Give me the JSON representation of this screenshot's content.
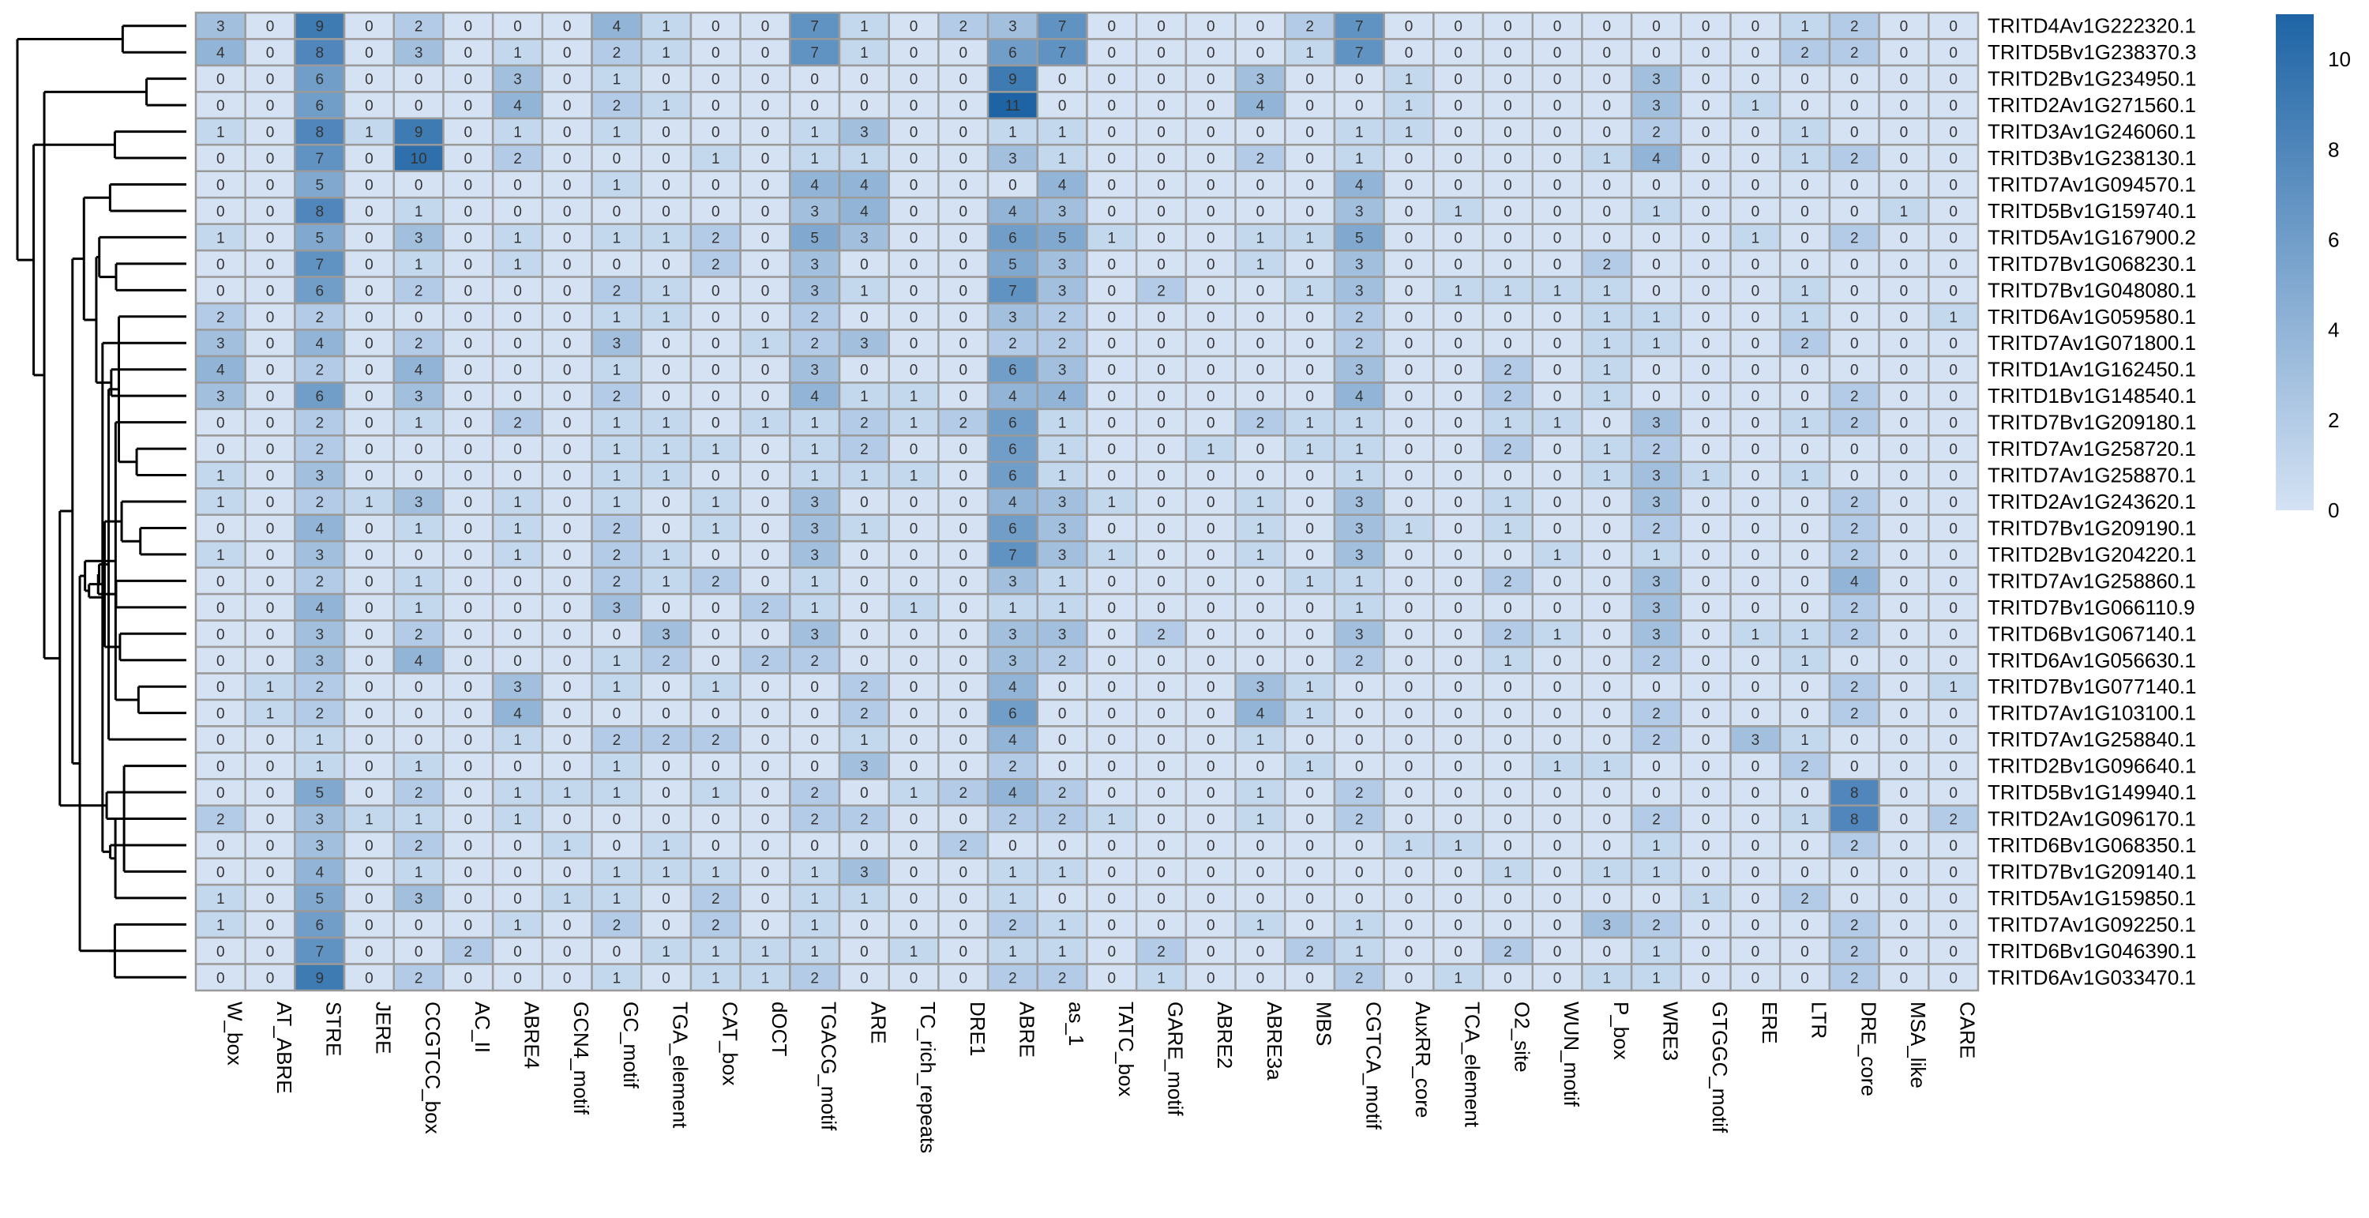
{
  "chart_data": {
    "type": "heatmap",
    "rows": [
      "TRITD4Av1G222320.1",
      "TRITD5Bv1G238370.3",
      "TRITD2Bv1G234950.1",
      "TRITD2Av1G271560.1",
      "TRITD3Av1G246060.1",
      "TRITD3Bv1G238130.1",
      "TRITD7Av1G094570.1",
      "TRITD5Bv1G159740.1",
      "TRITD5Av1G167900.2",
      "TRITD7Bv1G068230.1",
      "TRITD7Bv1G048080.1",
      "TRITD6Av1G059580.1",
      "TRITD7Av1G071800.1",
      "TRITD1Av1G162450.1",
      "TRITD1Bv1G148540.1",
      "TRITD7Bv1G209180.1",
      "TRITD7Av1G258720.1",
      "TRITD7Av1G258870.1",
      "TRITD2Av1G243620.1",
      "TRITD7Bv1G209190.1",
      "TRITD2Bv1G204220.1",
      "TRITD7Av1G258860.1",
      "TRITD7Bv1G066110.9",
      "TRITD6Bv1G067140.1",
      "TRITD6Av1G056630.1",
      "TRITD7Bv1G077140.1",
      "TRITD7Av1G103100.1",
      "TRITD7Av1G258840.1",
      "TRITD2Bv1G096640.1",
      "TRITD5Bv1G149940.1",
      "TRITD2Av1G096170.1",
      "TRITD6Bv1G068350.1",
      "TRITD7Bv1G209140.1",
      "TRITD5Av1G159850.1",
      "TRITD7Av1G092250.1",
      "TRITD6Bv1G046390.1",
      "TRITD6Av1G033470.1"
    ],
    "columns": [
      "W_box",
      "AT_ABRE",
      "STRE",
      "JERE",
      "CCGTCC_box",
      "AC_II",
      "ABRE4",
      "GCN4_motif",
      "GC_motif",
      "TGA_element",
      "CAT_box",
      "dOCT",
      "TGACG_motif",
      "ARE",
      "TC_rich_repeats",
      "DRE1",
      "ABRE",
      "as_1",
      "TATC_box",
      "GARE_motif",
      "ABRE2",
      "ABRE3a",
      "MBS",
      "CGTCA_motif",
      "AuxRR_core",
      "TCA_element",
      "O2_site",
      "WUN_motif",
      "P_box",
      "WRE3",
      "GTGGC_motif",
      "ERE",
      "LTR",
      "DRE_core",
      "MSA_like",
      "CARE"
    ],
    "values": [
      [
        3,
        0,
        9,
        0,
        2,
        0,
        0,
        0,
        4,
        1,
        0,
        0,
        7,
        1,
        0,
        2,
        3,
        7,
        0,
        0,
        0,
        0,
        2,
        7,
        0,
        0,
        0,
        0,
        0,
        0,
        0,
        0,
        1,
        2,
        0,
        0
      ],
      [
        4,
        0,
        8,
        0,
        3,
        0,
        1,
        0,
        2,
        1,
        0,
        0,
        7,
        1,
        0,
        0,
        6,
        7,
        0,
        0,
        0,
        0,
        1,
        7,
        0,
        0,
        0,
        0,
        0,
        0,
        0,
        0,
        2,
        2,
        0,
        0
      ],
      [
        0,
        0,
        6,
        0,
        0,
        0,
        3,
        0,
        1,
        0,
        0,
        0,
        0,
        0,
        0,
        0,
        9,
        0,
        0,
        0,
        0,
        3,
        0,
        0,
        1,
        0,
        0,
        0,
        0,
        3,
        0,
        0,
        0,
        0,
        0,
        0
      ],
      [
        0,
        0,
        6,
        0,
        0,
        0,
        4,
        0,
        2,
        1,
        0,
        0,
        0,
        0,
        0,
        0,
        11,
        0,
        0,
        0,
        0,
        4,
        0,
        0,
        1,
        0,
        0,
        0,
        0,
        3,
        0,
        1,
        0,
        0,
        0,
        0
      ],
      [
        1,
        0,
        8,
        1,
        9,
        0,
        1,
        0,
        1,
        0,
        0,
        0,
        1,
        3,
        0,
        0,
        1,
        1,
        0,
        0,
        0,
        0,
        0,
        1,
        1,
        0,
        0,
        0,
        0,
        2,
        0,
        0,
        1,
        0,
        0,
        0
      ],
      [
        0,
        0,
        7,
        0,
        10,
        0,
        2,
        0,
        0,
        0,
        1,
        0,
        1,
        1,
        0,
        0,
        3,
        1,
        0,
        0,
        0,
        2,
        0,
        1,
        0,
        0,
        0,
        0,
        1,
        4,
        0,
        0,
        1,
        2,
        0,
        0
      ],
      [
        0,
        0,
        5,
        0,
        0,
        0,
        0,
        0,
        1,
        0,
        0,
        0,
        4,
        4,
        0,
        0,
        0,
        4,
        0,
        0,
        0,
        0,
        0,
        4,
        0,
        0,
        0,
        0,
        0,
        0,
        0,
        0,
        0,
        0,
        0,
        0
      ],
      [
        0,
        0,
        8,
        0,
        1,
        0,
        0,
        0,
        0,
        0,
        0,
        0,
        3,
        4,
        0,
        0,
        4,
        3,
        0,
        0,
        0,
        0,
        0,
        3,
        0,
        1,
        0,
        0,
        0,
        1,
        0,
        0,
        0,
        0,
        1,
        0
      ],
      [
        1,
        0,
        5,
        0,
        3,
        0,
        1,
        0,
        1,
        1,
        2,
        0,
        5,
        3,
        0,
        0,
        6,
        5,
        1,
        0,
        0,
        1,
        1,
        5,
        0,
        0,
        0,
        0,
        0,
        0,
        0,
        1,
        0,
        2,
        0,
        0
      ],
      [
        0,
        0,
        7,
        0,
        1,
        0,
        1,
        0,
        0,
        0,
        2,
        0,
        3,
        0,
        0,
        0,
        5,
        3,
        0,
        0,
        0,
        1,
        0,
        3,
        0,
        0,
        0,
        0,
        2,
        0,
        0,
        0,
        0,
        0,
        0,
        0
      ],
      [
        0,
        0,
        6,
        0,
        2,
        0,
        0,
        0,
        2,
        1,
        0,
        0,
        3,
        1,
        0,
        0,
        7,
        3,
        0,
        2,
        0,
        0,
        1,
        3,
        0,
        1,
        1,
        1,
        1,
        0,
        0,
        0,
        1,
        0,
        0,
        0
      ],
      [
        2,
        0,
        2,
        0,
        0,
        0,
        0,
        0,
        1,
        1,
        0,
        0,
        2,
        0,
        0,
        0,
        3,
        2,
        0,
        0,
        0,
        0,
        0,
        2,
        0,
        0,
        0,
        0,
        1,
        1,
        0,
        0,
        1,
        0,
        0,
        1
      ],
      [
        3,
        0,
        4,
        0,
        2,
        0,
        0,
        0,
        3,
        0,
        0,
        1,
        2,
        3,
        0,
        0,
        2,
        2,
        0,
        0,
        0,
        0,
        0,
        2,
        0,
        0,
        0,
        0,
        1,
        1,
        0,
        0,
        2,
        0,
        0,
        0
      ],
      [
        4,
        0,
        2,
        0,
        4,
        0,
        0,
        0,
        1,
        0,
        0,
        0,
        3,
        0,
        0,
        0,
        6,
        3,
        0,
        0,
        0,
        0,
        0,
        3,
        0,
        0,
        2,
        0,
        1,
        0,
        0,
        0,
        0,
        0,
        0,
        0
      ],
      [
        3,
        0,
        6,
        0,
        3,
        0,
        0,
        0,
        2,
        0,
        0,
        0,
        4,
        1,
        1,
        0,
        4,
        4,
        0,
        0,
        0,
        0,
        0,
        4,
        0,
        0,
        2,
        0,
        1,
        0,
        0,
        0,
        0,
        2,
        0,
        0
      ],
      [
        0,
        0,
        2,
        0,
        1,
        0,
        2,
        0,
        1,
        1,
        0,
        1,
        1,
        2,
        1,
        2,
        6,
        1,
        0,
        0,
        0,
        2,
        1,
        1,
        0,
        0,
        1,
        1,
        0,
        3,
        0,
        0,
        1,
        2,
        0,
        0
      ],
      [
        0,
        0,
        2,
        0,
        0,
        0,
        0,
        0,
        1,
        1,
        1,
        0,
        1,
        2,
        0,
        0,
        6,
        1,
        0,
        0,
        1,
        0,
        1,
        1,
        0,
        0,
        2,
        0,
        1,
        2,
        0,
        0,
        0,
        0,
        0,
        0
      ],
      [
        1,
        0,
        3,
        0,
        0,
        0,
        0,
        0,
        1,
        1,
        0,
        0,
        1,
        1,
        1,
        0,
        6,
        1,
        0,
        0,
        0,
        0,
        0,
        1,
        0,
        0,
        0,
        0,
        1,
        3,
        1,
        0,
        1,
        0,
        0,
        0
      ],
      [
        1,
        0,
        2,
        1,
        3,
        0,
        1,
        0,
        1,
        0,
        1,
        0,
        3,
        0,
        0,
        0,
        4,
        3,
        1,
        0,
        0,
        1,
        0,
        3,
        0,
        0,
        1,
        0,
        0,
        3,
        0,
        0,
        0,
        2,
        0,
        0
      ],
      [
        0,
        0,
        4,
        0,
        1,
        0,
        1,
        0,
        2,
        0,
        1,
        0,
        3,
        1,
        0,
        0,
        6,
        3,
        0,
        0,
        0,
        1,
        0,
        3,
        1,
        0,
        1,
        0,
        0,
        2,
        0,
        0,
        0,
        2,
        0,
        0
      ],
      [
        1,
        0,
        3,
        0,
        0,
        0,
        1,
        0,
        2,
        1,
        0,
        0,
        3,
        0,
        0,
        0,
        7,
        3,
        1,
        0,
        0,
        1,
        0,
        3,
        0,
        0,
        0,
        1,
        0,
        1,
        0,
        0,
        0,
        2,
        0,
        0
      ],
      [
        0,
        0,
        2,
        0,
        1,
        0,
        0,
        0,
        2,
        1,
        2,
        0,
        1,
        0,
        0,
        0,
        3,
        1,
        0,
        0,
        0,
        0,
        1,
        1,
        0,
        0,
        2,
        0,
        0,
        3,
        0,
        0,
        0,
        4,
        0,
        0
      ],
      [
        0,
        0,
        4,
        0,
        1,
        0,
        0,
        0,
        3,
        0,
        0,
        2,
        1,
        0,
        1,
        0,
        1,
        1,
        0,
        0,
        0,
        0,
        0,
        1,
        0,
        0,
        0,
        0,
        0,
        3,
        0,
        0,
        0,
        2,
        0,
        0
      ],
      [
        0,
        0,
        3,
        0,
        2,
        0,
        0,
        0,
        0,
        3,
        0,
        0,
        3,
        0,
        0,
        0,
        3,
        3,
        0,
        2,
        0,
        0,
        0,
        3,
        0,
        0,
        2,
        1,
        0,
        3,
        0,
        1,
        1,
        2,
        0,
        0
      ],
      [
        0,
        0,
        3,
        0,
        4,
        0,
        0,
        0,
        1,
        2,
        0,
        2,
        2,
        0,
        0,
        0,
        3,
        2,
        0,
        0,
        0,
        0,
        0,
        2,
        0,
        0,
        1,
        0,
        0,
        2,
        0,
        0,
        1,
        0,
        0,
        0
      ],
      [
        0,
        1,
        2,
        0,
        0,
        0,
        3,
        0,
        1,
        0,
        1,
        0,
        0,
        2,
        0,
        0,
        4,
        0,
        0,
        0,
        0,
        3,
        1,
        0,
        0,
        0,
        0,
        0,
        0,
        0,
        0,
        0,
        0,
        2,
        0,
        1
      ],
      [
        0,
        1,
        2,
        0,
        0,
        0,
        4,
        0,
        0,
        0,
        0,
        0,
        0,
        2,
        0,
        0,
        6,
        0,
        0,
        0,
        0,
        4,
        1,
        0,
        0,
        0,
        0,
        0,
        0,
        2,
        0,
        0,
        0,
        2,
        0,
        0
      ],
      [
        0,
        0,
        1,
        0,
        0,
        0,
        1,
        0,
        2,
        2,
        2,
        0,
        0,
        1,
        0,
        0,
        4,
        0,
        0,
        0,
        0,
        1,
        0,
        0,
        0,
        0,
        0,
        0,
        0,
        2,
        0,
        3,
        1,
        0,
        0,
        0
      ],
      [
        0,
        0,
        1,
        0,
        1,
        0,
        0,
        0,
        1,
        0,
        0,
        0,
        0,
        3,
        0,
        0,
        2,
        0,
        0,
        0,
        0,
        0,
        1,
        0,
        0,
        0,
        0,
        1,
        1,
        0,
        0,
        0,
        2,
        0,
        0,
        0
      ],
      [
        0,
        0,
        5,
        0,
        2,
        0,
        1,
        1,
        1,
        0,
        1,
        0,
        2,
        0,
        1,
        2,
        4,
        2,
        0,
        0,
        0,
        1,
        0,
        2,
        0,
        0,
        0,
        0,
        0,
        0,
        0,
        0,
        0,
        8,
        0,
        0
      ],
      [
        2,
        0,
        3,
        1,
        1,
        0,
        1,
        0,
        0,
        0,
        0,
        0,
        2,
        2,
        0,
        0,
        2,
        2,
        1,
        0,
        0,
        1,
        0,
        2,
        0,
        0,
        0,
        0,
        0,
        2,
        0,
        0,
        1,
        8,
        0,
        2
      ],
      [
        0,
        0,
        3,
        0,
        2,
        0,
        0,
        1,
        0,
        1,
        0,
        0,
        0,
        0,
        0,
        2,
        0,
        0,
        0,
        0,
        0,
        0,
        0,
        0,
        1,
        1,
        0,
        0,
        0,
        1,
        0,
        0,
        0,
        2,
        0,
        0
      ],
      [
        0,
        0,
        4,
        0,
        1,
        0,
        0,
        0,
        1,
        1,
        1,
        0,
        1,
        3,
        0,
        0,
        1,
        1,
        0,
        0,
        0,
        0,
        0,
        0,
        0,
        0,
        1,
        0,
        1,
        1,
        0,
        0,
        0,
        0,
        0,
        0
      ],
      [
        1,
        0,
        5,
        0,
        3,
        0,
        0,
        1,
        1,
        0,
        2,
        0,
        1,
        1,
        0,
        0,
        1,
        0,
        0,
        0,
        0,
        0,
        0,
        0,
        0,
        0,
        0,
        0,
        0,
        0,
        1,
        0,
        2,
        0,
        0,
        0
      ],
      [
        1,
        0,
        6,
        0,
        0,
        0,
        1,
        0,
        2,
        0,
        2,
        0,
        1,
        0,
        0,
        0,
        2,
        1,
        0,
        0,
        0,
        1,
        0,
        1,
        0,
        0,
        0,
        0,
        3,
        2,
        0,
        0,
        0,
        2,
        0,
        0
      ],
      [
        0,
        0,
        7,
        0,
        0,
        2,
        0,
        0,
        0,
        1,
        1,
        1,
        1,
        0,
        1,
        0,
        1,
        1,
        0,
        2,
        0,
        0,
        2,
        1,
        0,
        0,
        2,
        0,
        0,
        1,
        0,
        0,
        0,
        2,
        0,
        0
      ],
      [
        0,
        0,
        9,
        0,
        2,
        0,
        0,
        0,
        1,
        0,
        1,
        1,
        2,
        0,
        0,
        0,
        2,
        2,
        0,
        1,
        0,
        0,
        0,
        2,
        0,
        1,
        0,
        0,
        1,
        1,
        0,
        0,
        0,
        2,
        0,
        0
      ]
    ],
    "color_scale": {
      "low": "#d4e2f4",
      "high": "#1e64a5",
      "min": 0,
      "max": 11
    },
    "legend_ticks": [
      0,
      2,
      4,
      6,
      8,
      10
    ],
    "legend_placement": "right",
    "grid": true,
    "row_dendrogram": true
  }
}
